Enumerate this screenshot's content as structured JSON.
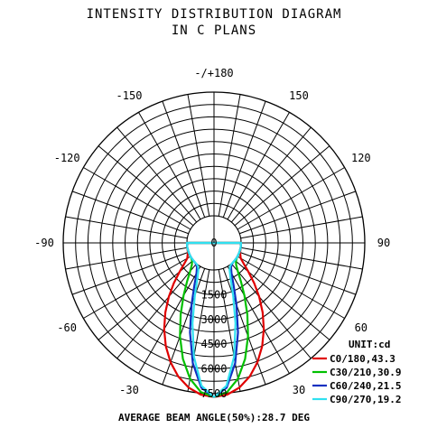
{
  "chart_data": {
    "type": "polar",
    "title": "INTENSITY DISTRIBUTION DIAGRAM",
    "subtitle": "IN C PLANS",
    "angle_labels": [
      {
        "angle": 180,
        "text": "-/+180"
      },
      {
        "angle": -150,
        "text": "-150"
      },
      {
        "angle": 150,
        "text": "150"
      },
      {
        "angle": -120,
        "text": "-120"
      },
      {
        "angle": 120,
        "text": "120"
      },
      {
        "angle": -90,
        "text": "-90"
      },
      {
        "angle": 90,
        "text": "90"
      },
      {
        "angle": -60,
        "text": "-60"
      },
      {
        "angle": 60,
        "text": "60"
      },
      {
        "angle": -30,
        "text": "-30"
      },
      {
        "angle": 30,
        "text": "30"
      }
    ],
    "radial_labels": [
      "0",
      "1500",
      "3000",
      "4500",
      "6000",
      "7500"
    ],
    "radial_max": 7500,
    "unit_label": "UNIT:cd",
    "series": [
      {
        "name": "C0/180,43.3",
        "color": "#e00000",
        "half_angle": 43.3,
        "angles": [
          0,
          5,
          10,
          15,
          20,
          25,
          30,
          35,
          40,
          45,
          50,
          55,
          60,
          70,
          80,
          90
        ],
        "values": [
          7700,
          7590,
          7260,
          6740,
          6060,
          5270,
          4400,
          3500,
          2620,
          1800,
          1080,
          560,
          230,
          40,
          5,
          0
        ]
      },
      {
        "name": "C30/210,30.9",
        "color": "#00c000",
        "half_angle": 30.9,
        "angles": [
          0,
          5,
          10,
          15,
          20,
          25,
          30,
          35,
          40,
          45,
          50,
          55,
          60,
          70,
          80,
          90
        ],
        "values": [
          7700,
          7440,
          6720,
          5640,
          4390,
          3140,
          2050,
          1200,
          610,
          260,
          90,
          25,
          5,
          0,
          0,
          0
        ]
      },
      {
        "name": "C60/240,21.5",
        "color": "#1030c0",
        "half_angle": 21.5,
        "angles": [
          0,
          5,
          10,
          15,
          20,
          25,
          30,
          35,
          40,
          45,
          50,
          55,
          60,
          70,
          80,
          90
        ],
        "values": [
          7700,
          7170,
          5760,
          3980,
          2340,
          1160,
          480,
          160,
          45,
          10,
          0,
          0,
          0,
          0,
          0,
          0
        ]
      },
      {
        "name": "C90/270,19.2",
        "color": "#30e0f0",
        "half_angle": 19.2,
        "angles": [
          0,
          5,
          10,
          15,
          20,
          25,
          30,
          35,
          40,
          45,
          50,
          55,
          60,
          70,
          80,
          90
        ],
        "values": [
          7700,
          7050,
          5370,
          3400,
          1760,
          740,
          250,
          65,
          15,
          0,
          0,
          0,
          0,
          0,
          0,
          0
        ]
      }
    ],
    "footer": "AVERAGE BEAM ANGLE(50%):28.7 DEG"
  }
}
